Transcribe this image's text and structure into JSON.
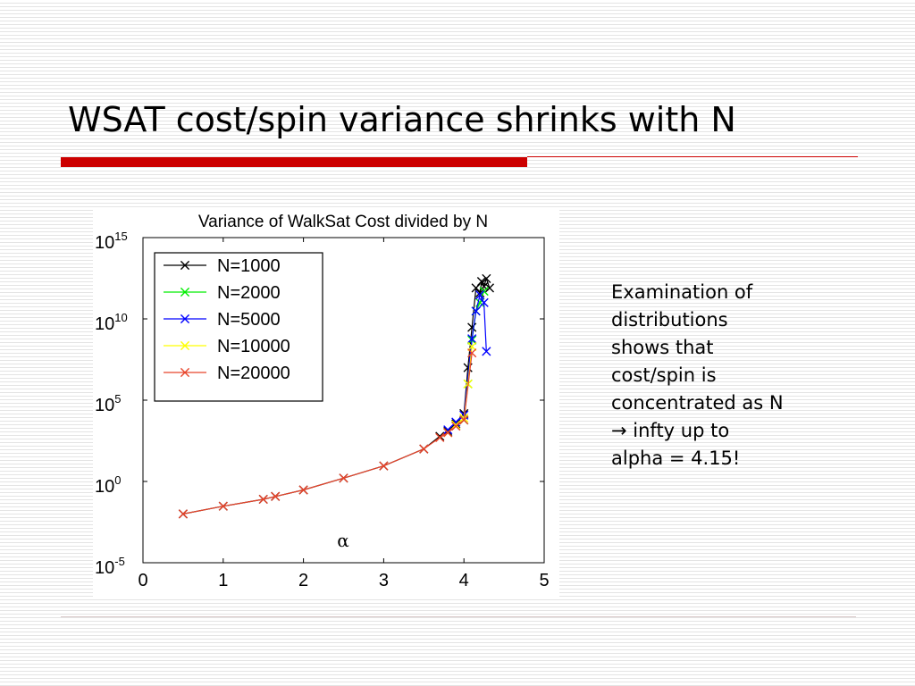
{
  "slide": {
    "title": "WSAT cost/spin variance shrinks with N",
    "notes": [
      "Examination of",
      "distributions",
      "shows that",
      "cost/spin is",
      "concentrated as N",
      "→ infty up to",
      "alpha = 4.15!"
    ],
    "colors": {
      "title_rule": "#cc0000",
      "footer_rule": "#d9c9c9"
    }
  },
  "chart_data": {
    "type": "line",
    "title": "Variance of WalkSat Cost divided by N",
    "xlabel": "α",
    "ylabel": "",
    "xlim": [
      0,
      5
    ],
    "ylim": [
      1e-05,
      1000000000000000.0
    ],
    "yscale": "log",
    "xticks": [
      "0",
      "1",
      "2",
      "3",
      "4",
      "5"
    ],
    "yticks": [
      {
        "base": "10",
        "exp": "15",
        "value": 1000000000000000.0
      },
      {
        "base": "10",
        "exp": "10",
        "value": 10000000000.0
      },
      {
        "base": "10",
        "exp": "5",
        "value": 100000.0
      },
      {
        "base": "10",
        "exp": "0",
        "value": 1
      },
      {
        "base": "10",
        "exp": "-5",
        "value": 1e-05
      }
    ],
    "grid": false,
    "legend_position": "top-left",
    "marker": "x",
    "series": [
      {
        "name": "N=1000",
        "color": "#000000",
        "x": [
          0.5,
          1.0,
          1.5,
          1.65,
          2.0,
          2.5,
          3.0,
          3.5,
          3.7,
          3.8,
          3.9,
          4.0,
          4.05,
          4.1,
          4.15,
          4.2,
          4.22,
          4.25,
          4.28,
          4.32
        ],
        "y": [
          0.01,
          0.03,
          0.08,
          0.12,
          0.3,
          1.6,
          9,
          100,
          600,
          1200,
          3500,
          15000,
          10000000.0,
          3000000000.0,
          800000000000.0,
          400000000000.0,
          2000000000000.0,
          1000000000000.0,
          3000000000000.0,
          800000000000.0
        ]
      },
      {
        "name": "N=2000",
        "color": "#00ee00",
        "x": [
          3.9,
          4.0,
          4.05,
          4.1,
          4.15,
          4.2,
          4.25
        ],
        "y": [
          2800,
          6000,
          1000000.0,
          500000000.0,
          30000000000.0,
          100000000000.0,
          500000000000.0
        ]
      },
      {
        "name": "N=5000",
        "color": "#0000ff",
        "x": [
          3.8,
          3.9,
          4.0,
          4.1,
          4.15,
          4.2,
          4.25,
          4.28
        ],
        "y": [
          1500,
          4500,
          12000,
          600000000.0,
          30000000000.0,
          300000000000.0,
          100000000000.0,
          100000000.0
        ]
      },
      {
        "name": "N=10000",
        "color": "#ffff00",
        "x": [
          3.8,
          3.9,
          4.0,
          4.05,
          4.1
        ],
        "y": [
          1000,
          3000,
          8000,
          1000000.0,
          200000000.0
        ]
      },
      {
        "name": "N=20000",
        "color": "#e8442a",
        "x": [
          0.5,
          1.0,
          1.5,
          1.65,
          2.0,
          2.5,
          3.0,
          3.5,
          3.7,
          3.8,
          3.9,
          4.0,
          4.1
        ],
        "y": [
          0.01,
          0.03,
          0.08,
          0.12,
          0.3,
          1.6,
          9,
          100,
          500,
          1000,
          2500,
          6000,
          80000000.0
        ]
      }
    ]
  }
}
